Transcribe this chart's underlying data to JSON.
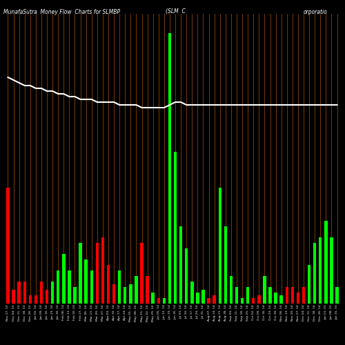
{
  "title_left": "MunafaSutra  Money Flow  Charts for SLMBP",
  "title_center": "(SLM  C",
  "title_right": "orporatio",
  "background_color": "#000000",
  "bar_color_up": "#00ff00",
  "bar_color_down": "#ff0000",
  "vertical_line_color": "#8B4500",
  "white_line_color": "#ffffff",
  "n_bars": 60,
  "values": [
    0.42,
    0.05,
    0.08,
    0.08,
    0.03,
    0.03,
    0.08,
    0.05,
    0.08,
    0.12,
    0.18,
    0.12,
    0.06,
    0.22,
    0.16,
    0.12,
    0.22,
    0.24,
    0.14,
    0.07,
    0.12,
    0.06,
    0.07,
    0.1,
    0.22,
    0.1,
    0.04,
    0.02,
    0.02,
    0.98,
    0.55,
    0.28,
    0.2,
    0.08,
    0.04,
    0.05,
    0.02,
    0.03,
    0.42,
    0.28,
    0.1,
    0.06,
    0.02,
    0.06,
    0.02,
    0.03,
    0.1,
    0.06,
    0.04,
    0.03,
    0.06,
    0.06,
    0.04,
    0.06,
    0.14,
    0.22,
    0.24,
    0.3,
    0.24,
    0.06
  ],
  "bar_types": [
    "R",
    "R",
    "R",
    "R",
    "R",
    "R",
    "R",
    "R",
    "G",
    "G",
    "G",
    "G",
    "G",
    "G",
    "G",
    "G",
    "R",
    "R",
    "R",
    "R",
    "G",
    "G",
    "G",
    "G",
    "R",
    "R",
    "G",
    "R",
    "G",
    "G",
    "G",
    "G",
    "G",
    "G",
    "G",
    "G",
    "R",
    "R",
    "G",
    "G",
    "G",
    "G",
    "G",
    "G",
    "R",
    "R",
    "G",
    "G",
    "G",
    "G",
    "R",
    "R",
    "R",
    "R",
    "G",
    "G",
    "G",
    "G",
    "G",
    "G"
  ],
  "white_line": [
    0.82,
    0.81,
    0.8,
    0.79,
    0.79,
    0.78,
    0.78,
    0.77,
    0.77,
    0.76,
    0.76,
    0.75,
    0.75,
    0.74,
    0.74,
    0.74,
    0.73,
    0.73,
    0.73,
    0.73,
    0.72,
    0.72,
    0.72,
    0.72,
    0.71,
    0.71,
    0.71,
    0.71,
    0.71,
    0.72,
    0.73,
    0.73,
    0.72,
    0.72,
    0.72,
    0.72,
    0.72,
    0.72,
    0.72,
    0.72,
    0.72,
    0.72,
    0.72,
    0.72,
    0.72,
    0.72,
    0.72,
    0.72,
    0.72,
    0.72,
    0.72,
    0.72,
    0.72,
    0.72,
    0.72,
    0.72,
    0.72,
    0.72,
    0.72,
    0.72
  ],
  "xlabels": [
    "Nov 27, 13",
    "Dec 04, 13",
    "Dec 11, 13",
    "Dec 18, 13",
    "Dec 26, 13",
    "Jan 02, 14",
    "Jan 09, 14",
    "Jan 16, 14",
    "Jan 23, 14",
    "Jan 30, 14",
    "Feb 06, 14",
    "Feb 13, 14",
    "Feb 20, 14",
    "Feb 27, 14",
    "Mar 06, 14",
    "Mar 13, 14",
    "Mar 20, 14",
    "Mar 27, 14",
    "Apr 03, 14",
    "Apr 10, 14",
    "Apr 17, 14",
    "Apr 24, 14",
    "May 01, 14",
    "May 08, 14",
    "May 15, 14",
    "May 22, 14",
    "May 29, 14",
    "Jun 05, 14",
    "Jun 12, 14",
    "Jun 19, 14",
    "Jun 26, 14",
    "Jul 03, 14",
    "Jul 10, 14",
    "Jul 17, 14",
    "Jul 24, 14",
    "Jul 31, 14",
    "Aug 07, 14",
    "Aug 14, 14",
    "Aug 21, 14",
    "Aug 28, 14",
    "Sep 04, 14",
    "Sep 11, 14",
    "Sep 18, 14",
    "Sep 25, 14",
    "Oct 02, 14",
    "Oct 09, 14",
    "Oct 16, 14",
    "Oct 23, 14",
    "Oct 30, 14",
    "Nov 06, 14",
    "Nov 13, 14",
    "Nov 20, 14",
    "Nov 27, 14",
    "Dec 04, 14",
    "Dec 11, 14",
    "Dec 18, 14",
    "Dec 26, 14",
    "Jan 01, 15",
    "Jan 08, 15",
    "Jan 15, 15"
  ]
}
